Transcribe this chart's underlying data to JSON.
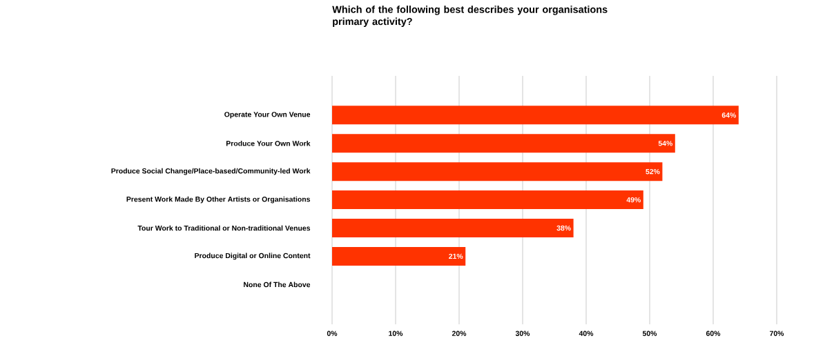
{
  "chart_data": {
    "type": "bar",
    "orientation": "horizontal",
    "title": "Which of the following best describes your organisations primary activity?",
    "categories": [
      "Operate Your Own Venue",
      "Produce Your Own Work",
      "Produce Social Change/Place-based/Community-led Work",
      "Present Work Made By Other Artists or Organisations",
      "Tour Work to Traditional or Non-traditional Venues",
      "Produce Digital or Online Content",
      "None Of The Above"
    ],
    "values": [
      64,
      54,
      52,
      49,
      38,
      21,
      0
    ],
    "value_labels": [
      "64%",
      "54%",
      "52%",
      "49%",
      "38%",
      "21%",
      null
    ],
    "color": "#ff3300",
    "xlim": [
      0,
      70
    ],
    "xticks": [
      {
        "value": 0,
        "label": "0%"
      },
      {
        "value": 10,
        "label": "10%"
      },
      {
        "value": 20,
        "label": "20%"
      },
      {
        "value": 30,
        "label": "30%"
      },
      {
        "value": 40,
        "label": "40%"
      },
      {
        "value": 50,
        "label": "50%"
      },
      {
        "value": 60,
        "label": "60%"
      },
      {
        "value": 70,
        "label": "70%"
      }
    ],
    "grid": "x"
  }
}
